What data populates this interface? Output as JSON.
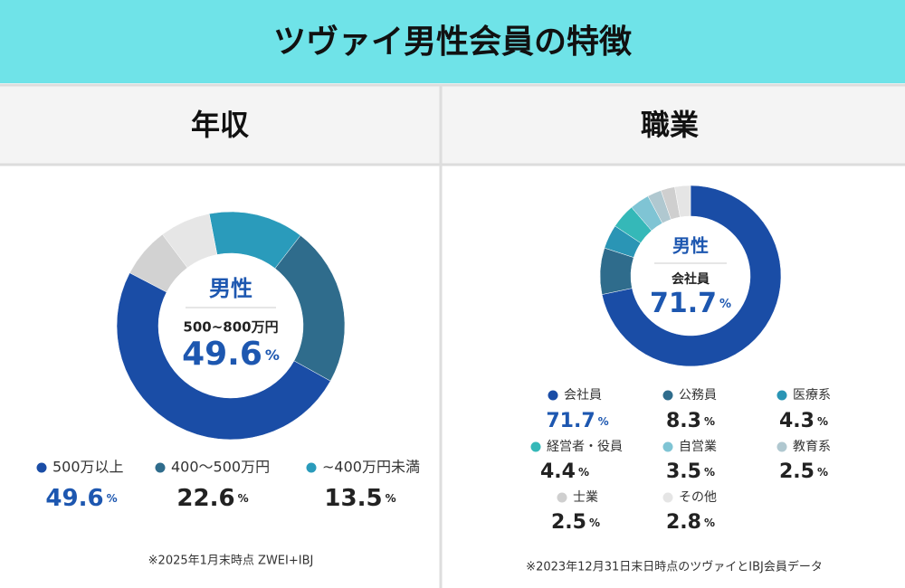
{
  "header": {
    "title": "ツヴァイ男性会員の特徴"
  },
  "chart_data": [
    {
      "type": "donut",
      "title": "年収",
      "center_title": "男性",
      "center_label": "500~800万円",
      "center_value": 49.6,
      "center_value_label": "49.6%",
      "categories": [
        "500万以上",
        "400〜500万円",
        "~400万円未満",
        null,
        null
      ],
      "values": [
        49.6,
        22.6,
        13.5,
        7.2,
        7.1
      ],
      "value_labels": [
        "49.6%",
        "22.6%",
        "13.5%",
        null,
        null
      ],
      "colors": [
        "#1a4da6",
        "#2f6c8c",
        "#2a9bbb",
        "#e6e6e6",
        "#d2d2d2"
      ],
      "note": "※2025年1月末時点 ZWEI+IBJ"
    },
    {
      "type": "donut",
      "title": "職業",
      "center_title": "男性",
      "center_label": "会社員",
      "center_value": 71.7,
      "center_value_label": "71.7%",
      "categories": [
        "会社員",
        "公務員",
        "医療系",
        "経営者・役員",
        "自営業",
        "教育系",
        "士業",
        "その他"
      ],
      "values": [
        71.7,
        8.3,
        4.3,
        4.4,
        3.5,
        2.5,
        2.5,
        2.8
      ],
      "value_labels": [
        "71.7%",
        "8.3%",
        "4.3%",
        "4.4%",
        "3.5%",
        "2.5%",
        "2.5%",
        "2.8%"
      ],
      "colors": [
        "#1a4da6",
        "#2f6c8c",
        "#2a95b5",
        "#35b8b8",
        "#7fc4d4",
        "#b0c8d0",
        "#cfcfcf",
        "#e5e5e5"
      ],
      "note": "※2023年12月31日末日時点のツヴァイとIBJ会員データ"
    }
  ]
}
